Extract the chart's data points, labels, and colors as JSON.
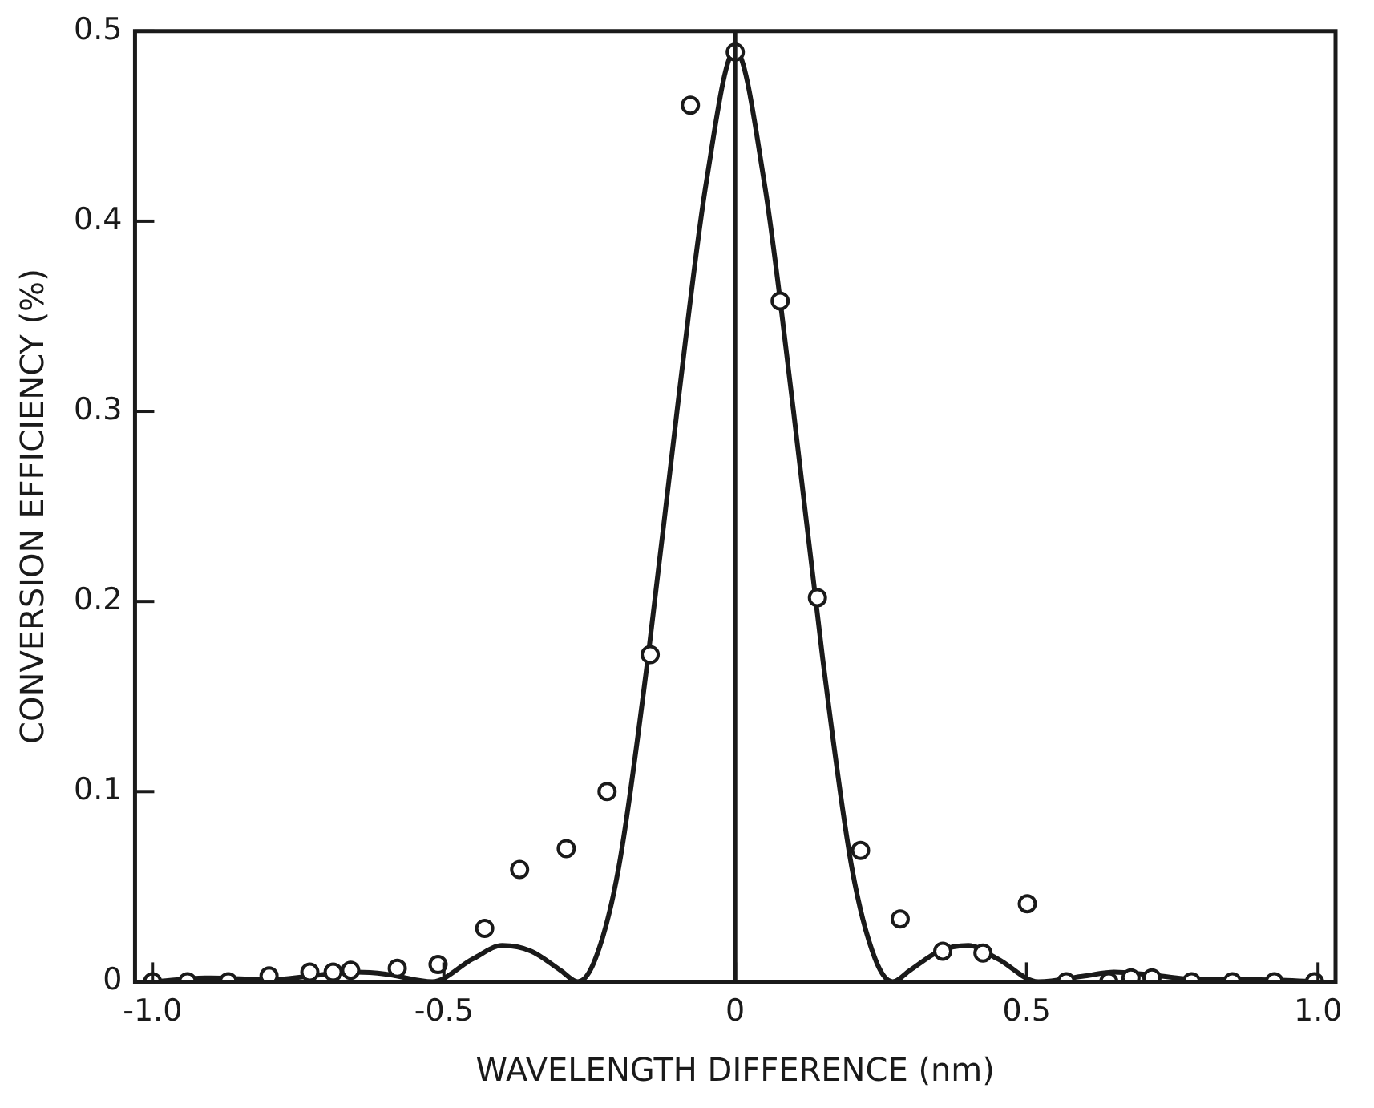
{
  "chart_data": {
    "type": "scatter",
    "xlabel": "WAVELENGTH DIFFERENCE (nm)",
    "ylabel": "CONVERSION EFFICIENCY (%)",
    "xlim": [
      -1.03,
      1.03
    ],
    "ylim": [
      0,
      0.5
    ],
    "xticks": [
      {
        "value": -1,
        "label": "-1.0"
      },
      {
        "value": -0.5,
        "label": "-0.5"
      },
      0,
      0.5,
      {
        "value": 1,
        "label": "1.0"
      }
    ],
    "yticks": [
      0,
      0.1,
      0.2,
      0.3,
      0.4,
      0.5
    ],
    "grid": false,
    "legend": false,
    "marker": "circle",
    "ref_lines": [
      {
        "axis": "x",
        "value": 0,
        "color": "#1a1a1a"
      }
    ],
    "series": [
      {
        "color": "#1a1a1a",
        "x": [
          -1.0,
          -0.94,
          -0.87,
          -0.8,
          -0.73,
          -0.69,
          -0.66,
          -0.58,
          -0.51,
          -0.43,
          -0.37,
          -0.29,
          -0.22,
          -0.146,
          -0.077,
          0.0,
          0.077,
          0.141,
          0.215,
          0.283,
          0.356,
          0.425,
          0.501,
          0.568,
          0.641,
          0.679,
          0.715,
          0.783,
          0.853,
          0.925,
          0.994
        ],
        "values": [
          0,
          0,
          0,
          0.003,
          0.005,
          0.005,
          0.006,
          0.007,
          0.009,
          0.028,
          0.059,
          0.07,
          0.1,
          0.172,
          0.461,
          0.489,
          0.358,
          0.202,
          0.069,
          0.033,
          0.016,
          0.015,
          0.041,
          0,
          0,
          0.002,
          0.002,
          0,
          0,
          0,
          0
        ]
      },
      {
        "type": "line",
        "color": "#1a1a1a",
        "marker": "none",
        "line_style": "solid",
        "x": [
          -1.0,
          -0.9,
          -0.8,
          -0.7,
          -0.65,
          -0.6,
          -0.52,
          -0.45,
          -0.4,
          -0.35,
          -0.3,
          -0.27,
          -0.24,
          -0.2,
          -0.15,
          -0.1,
          -0.05,
          0,
          0.05,
          0.1,
          0.15,
          0.2,
          0.24,
          0.27,
          0.3,
          0.35,
          0.4,
          0.45,
          0.52,
          0.6,
          0.65,
          0.7,
          0.8,
          0.9,
          1.0
        ],
        "values": [
          0,
          0.002,
          0.001,
          0.004,
          0.005,
          0.004,
          0,
          0.012,
          0.019,
          0.016,
          0.006,
          0,
          0.012,
          0.06,
          0.17,
          0.3,
          0.42,
          0.49,
          0.42,
          0.3,
          0.17,
          0.06,
          0.012,
          0,
          0.006,
          0.016,
          0.019,
          0.012,
          0,
          0.003,
          0.005,
          0.004,
          0.001,
          0.001,
          0
        ]
      }
    ]
  }
}
